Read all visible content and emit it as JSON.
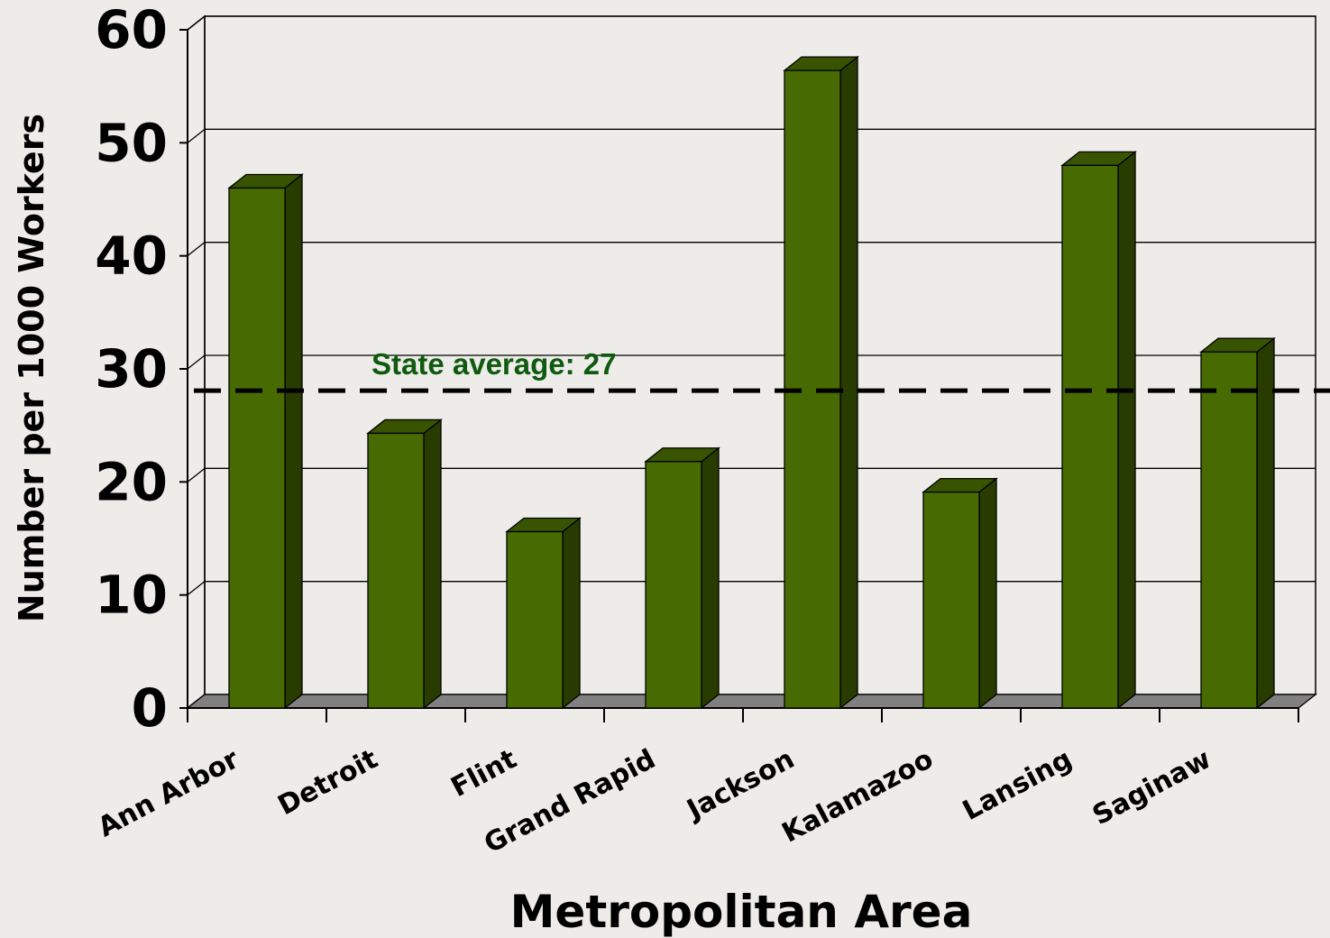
{
  "chart_data": {
    "type": "bar",
    "title": "",
    "xlabel": "Metropolitan Area",
    "ylabel": "Number per 1000 Workers",
    "categories": [
      "Ann Arbor",
      "Detroit",
      "Flint",
      "Grand Rapid",
      "Jackson",
      "Kalamazoo",
      "Lansing",
      "Saginaw"
    ],
    "values": [
      46,
      24.3,
      15.6,
      21.8,
      56.4,
      19.1,
      48,
      31.5
    ],
    "ylim": [
      0,
      60
    ],
    "yticks": [
      "0",
      "10",
      "20",
      "30",
      "40",
      "50",
      "60"
    ],
    "grid": true,
    "reference_line": {
      "value": 27,
      "label": "State average:  27",
      "style": "dashed",
      "color": "#000000",
      "label_color": "#0f5a0f"
    },
    "colors": {
      "bar_front": "#476b00",
      "bar_top": "#385400",
      "bar_side": "#283c00",
      "floor": "#808080",
      "background": "#eeece8"
    }
  }
}
